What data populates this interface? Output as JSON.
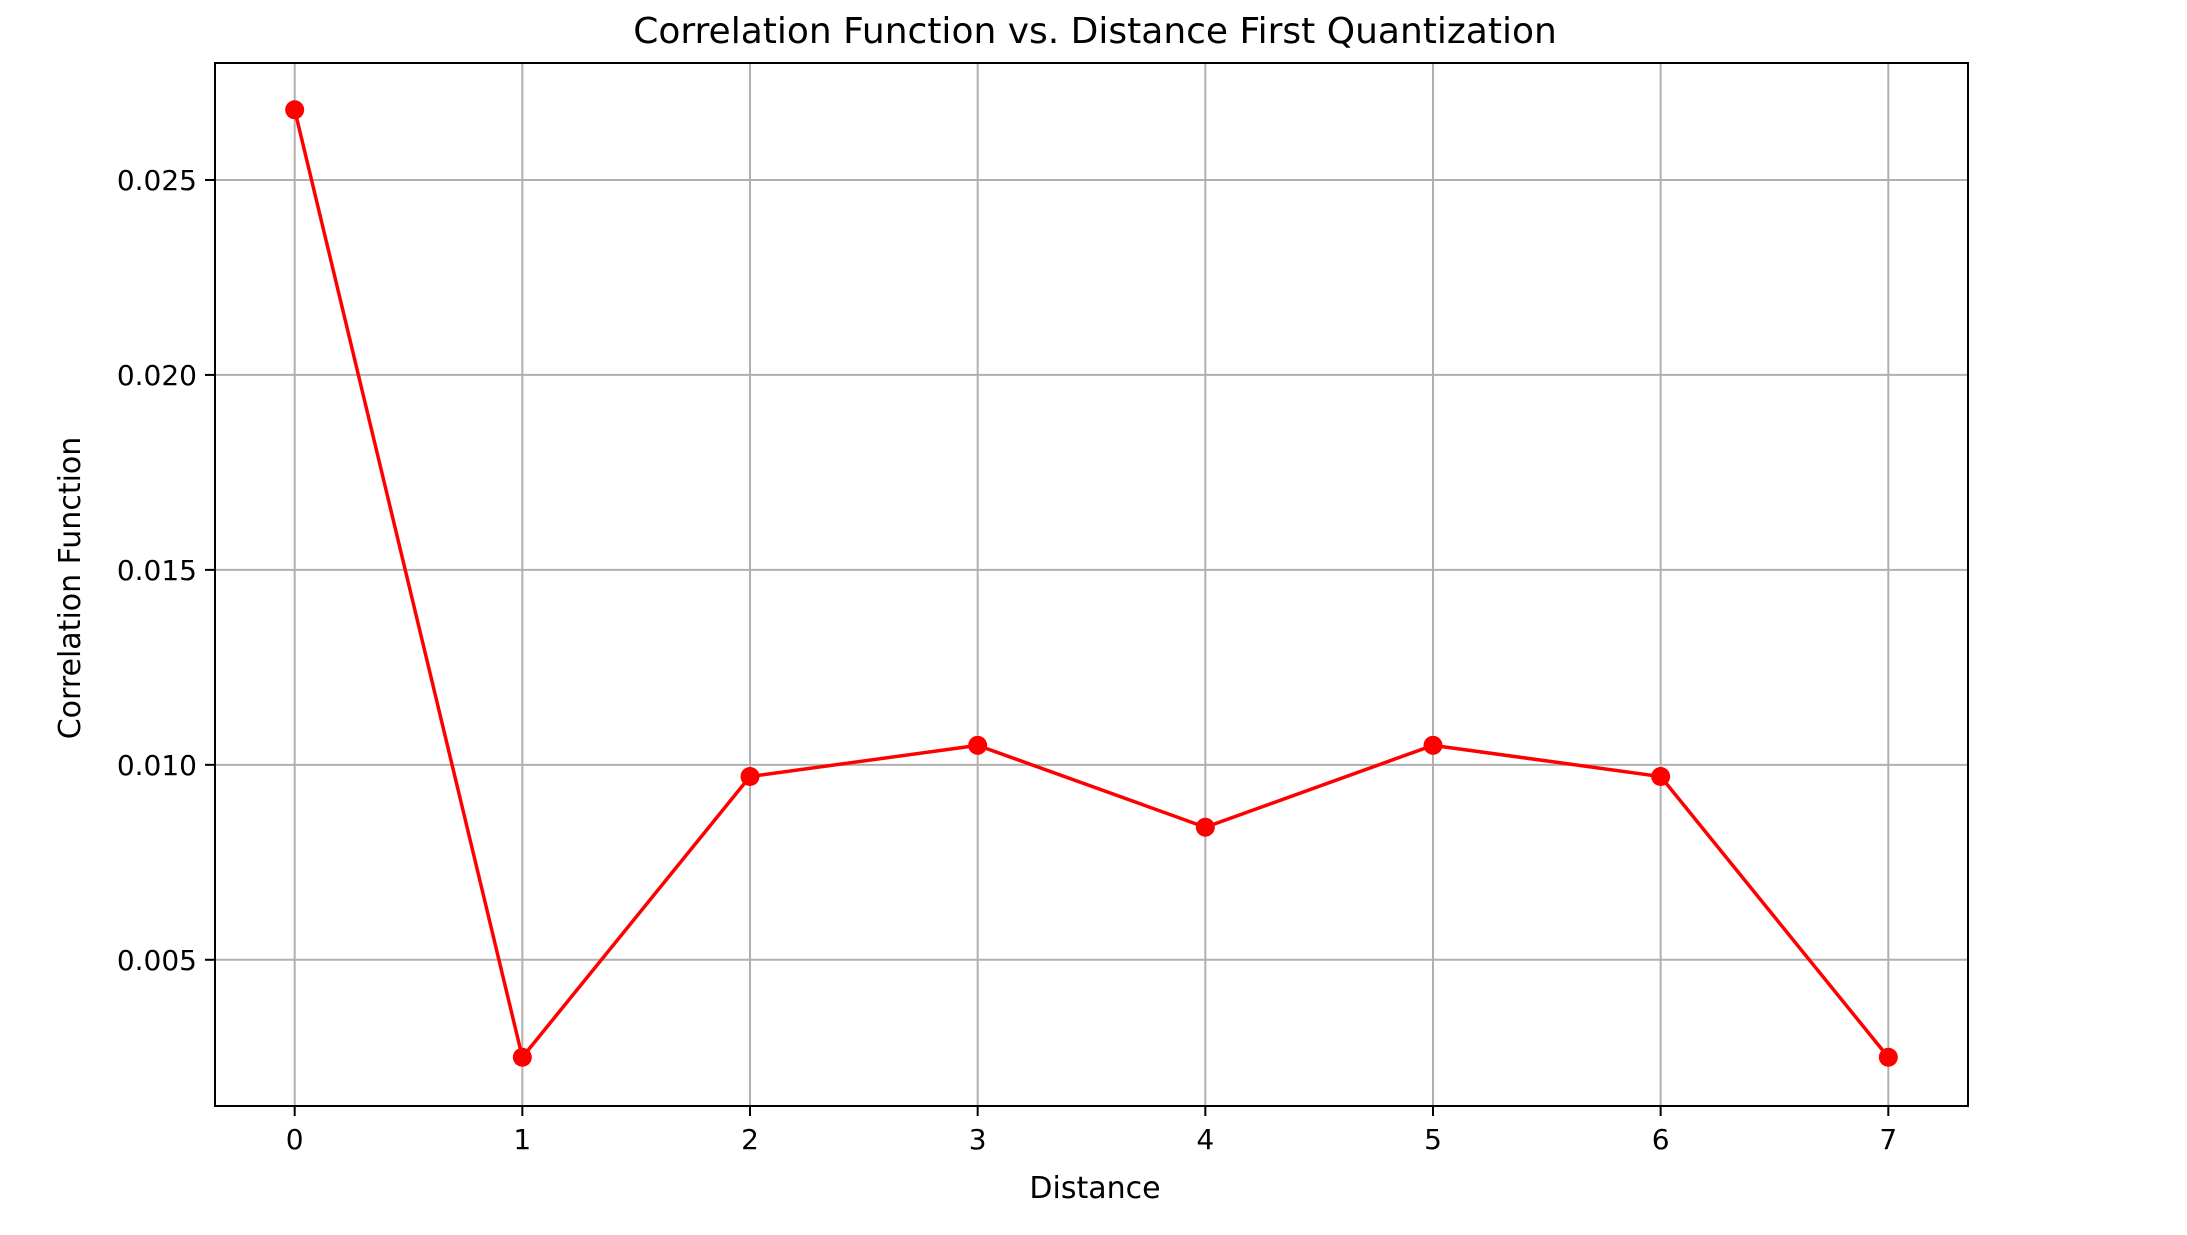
{
  "chart_data": {
    "type": "line",
    "title": "Correlation Function vs. Distance First Quantization",
    "xlabel": "Distance",
    "ylabel": "Correlation Function",
    "x": [
      0,
      1,
      2,
      3,
      4,
      5,
      6,
      7
    ],
    "series": [
      {
        "values": [
          0.0268,
          0.0025,
          0.0097,
          0.0105,
          0.0084,
          0.0105,
          0.0097,
          0.0025
        ],
        "color": "#ff0000",
        "marker": "circle"
      }
    ],
    "xlim": [
      -0.35,
      7.35
    ],
    "ylim": [
      0.00125,
      0.028
    ],
    "xticks": [
      0,
      1,
      2,
      3,
      4,
      5,
      6,
      7
    ],
    "xtick_labels": [
      "0",
      "1",
      "2",
      "3",
      "4",
      "5",
      "6",
      "7"
    ],
    "yticks": [
      0.005,
      0.01,
      0.015,
      0.02,
      0.025
    ],
    "ytick_labels": [
      "0.005",
      "0.010",
      "0.015",
      "0.020",
      "0.025"
    ],
    "grid": true,
    "legend": "none"
  }
}
